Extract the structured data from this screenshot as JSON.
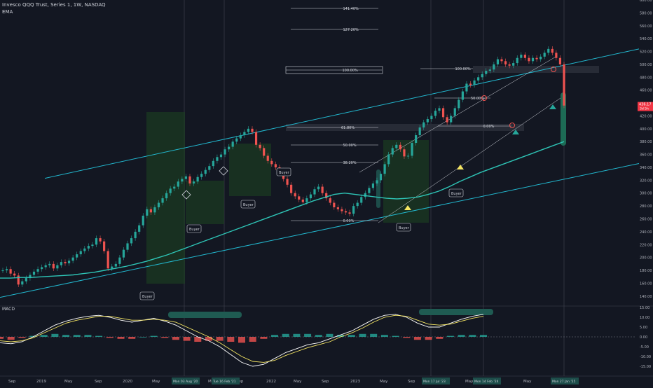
{
  "legend": {
    "symbol_line": "Invesco QQQ Trust, Series 1, 1W, NASDAQ",
    "ema_label": "EMA"
  },
  "macd_panel_label": "MACD",
  "price_tag": {
    "value": "436.17",
    "sub": "3d 5h",
    "color": "#f23645"
  },
  "colors": {
    "up": "#26a69a",
    "down": "#ef5350",
    "ema": "#2ec4b6",
    "macd_line": "#ffffff",
    "signal_line": "#f5e663",
    "channel": "#22b8cf",
    "zone": "#1e4620",
    "bg": "#131722"
  },
  "chart_data": [
    {
      "type": "candlestick",
      "title": "",
      "ylim": [
        130,
        600
      ],
      "y_scale": "linear",
      "price_ticks": [
        "600.00",
        "580.00",
        "560.00",
        "540.00",
        "520.00",
        "500.00",
        "480.00",
        "460.00",
        "420.00",
        "400.00",
        "380.00",
        "360.00",
        "340.00",
        "320.00",
        "300.00",
        "280.00",
        "260.00",
        "240.00",
        "220.00",
        "200.00",
        "180.00",
        "160.00",
        "140.00"
      ],
      "time_ticks": [
        "Sep",
        "2019",
        "May",
        "Sep",
        "2020",
        "May",
        "Sep",
        "May",
        "Sep",
        "2022",
        "May",
        "Sep",
        "2023",
        "May",
        "Sep",
        "2024",
        "May",
        "Sep",
        "May",
        "Sep"
      ],
      "date_badges": [
        "Mon 03 Aug '20",
        "Tue 16 Feb '21",
        "Mon 17 Jul '23",
        "Mon 14 Feb '24",
        "Mon 27 Jan '25"
      ],
      "weekly_close": [
        180,
        182,
        175,
        172,
        158,
        163,
        168,
        173,
        178,
        182,
        185,
        188,
        190,
        183,
        188,
        193,
        191,
        195,
        200,
        205,
        210,
        214,
        218,
        220,
        230,
        225,
        210,
        183,
        186,
        190,
        200,
        212,
        222,
        230,
        240,
        250,
        265,
        275,
        270,
        278,
        285,
        292,
        300,
        307,
        310,
        318,
        322,
        326,
        315,
        318,
        325,
        330,
        336,
        342,
        350,
        356,
        360,
        368,
        372,
        380,
        385,
        390,
        395,
        400,
        395,
        375,
        370,
        358,
        350,
        345,
        340,
        335,
        322,
        313,
        300,
        295,
        290,
        286,
        292,
        298,
        306,
        310,
        300,
        292,
        285,
        278,
        275,
        272,
        270,
        268,
        280,
        285,
        294,
        300,
        308,
        315,
        320,
        330,
        345,
        360,
        370,
        375,
        368,
        357,
        358,
        378,
        390,
        402,
        410,
        415,
        420,
        428,
        432,
        418,
        410,
        420,
        432,
        445,
        458,
        470,
        468,
        475,
        480,
        485,
        490,
        492,
        500,
        508,
        505,
        500,
        498,
        502,
        510,
        515,
        510,
        505,
        510,
        508,
        512,
        518,
        524,
        518,
        510,
        500,
        436
      ],
      "ema_values": [
        168,
        168,
        169,
        169,
        170,
        171,
        172,
        173,
        175,
        177,
        180,
        183,
        186,
        190,
        194,
        199,
        204,
        210,
        216,
        222,
        228,
        234,
        240,
        246,
        252,
        258,
        264,
        270,
        276,
        282,
        288,
        293,
        298,
        300,
        298,
        296,
        294,
        292,
        291,
        292,
        294,
        298,
        303,
        310,
        318,
        325,
        332,
        338,
        344,
        350,
        356,
        362,
        368,
        374,
        380
      ],
      "channel": {
        "upper_start": 323,
        "upper_end": 524,
        "lower_start": 138,
        "lower_end": 346
      },
      "fib_levels": [
        {
          "label": "141.40%"
        },
        {
          "label": "127.20%"
        },
        {
          "label": "100.00%"
        },
        {
          "label": "61.80%"
        },
        {
          "label": "50.00%"
        },
        {
          "label": "38.20%"
        },
        {
          "label": "0.00%"
        },
        {
          "label": "100.00%"
        },
        {
          "label": "50.00%"
        },
        {
          "label": "0.00%"
        }
      ],
      "annotations": [
        "Buyer",
        "Buyer",
        "Buyer",
        "Buyer",
        "Buyer",
        "Buyer"
      ]
    },
    {
      "type": "line",
      "title": "MACD",
      "ylim": [
        -17.5,
        12.5
      ],
      "y_ticks": [
        "15.00",
        "10.00",
        "5.00",
        "0.00",
        "-5.00",
        "-10.00",
        "-15.00"
      ],
      "series": [
        {
          "name": "",
          "values": [
            -3,
            -3.5,
            -2.5,
            0,
            3,
            6,
            8,
            9.5,
            10.5,
            11,
            10,
            8.5,
            7.5,
            8.5,
            9.5,
            8,
            6,
            3,
            0,
            -2,
            -5,
            -9,
            -13,
            -15,
            -14,
            -11,
            -8,
            -6,
            -4,
            -3,
            -1,
            1,
            3,
            6,
            9,
            11,
            11.5,
            10,
            7,
            5,
            5,
            7,
            9,
            10.5,
            11.5
          ]
        },
        {
          "name": "",
          "values": [
            -2,
            -2.5,
            -2,
            -0.5,
            2,
            4.5,
            7,
            8.5,
            9.5,
            10.5,
            10.5,
            9.5,
            8.5,
            8.5,
            9,
            8.5,
            7.5,
            5,
            2.5,
            0,
            -3,
            -6.5,
            -10,
            -12.5,
            -13,
            -12,
            -9.5,
            -7.5,
            -5.5,
            -4,
            -2.5,
            0,
            2,
            4.5,
            7.5,
            10,
            11,
            10.5,
            8.5,
            6.5,
            6,
            6.5,
            8,
            9.5,
            10.5
          ]
        },
        {
          "name": "",
          "values": [
            -1,
            -1.5,
            -0.5,
            0.5,
            1,
            1.5,
            1,
            1,
            1,
            0.5,
            -0.5,
            -1,
            -1,
            0,
            0.5,
            -0.5,
            -1.5,
            -2,
            -2.5,
            -2,
            -2,
            -2.5,
            -3,
            -2.5,
            -1,
            1,
            1.5,
            1.5,
            1.5,
            1,
            1.5,
            1,
            1,
            1.5,
            1.5,
            1,
            0.5,
            -0.5,
            -1.5,
            -1.5,
            -1,
            0.5,
            1,
            1,
            1
          ]
        }
      ]
    }
  ]
}
